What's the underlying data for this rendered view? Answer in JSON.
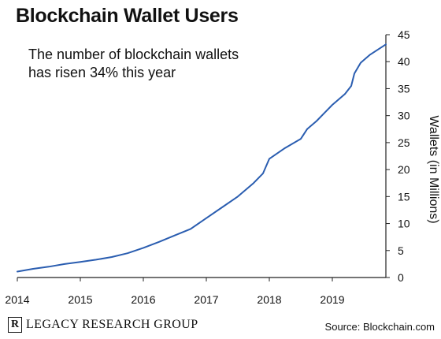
{
  "header": {
    "title": "Blockchain Wallet Users",
    "annotation_line1": "The number of blockchain wallets",
    "annotation_line2": "has risen 34% this year"
  },
  "footer": {
    "brand_mark": "R",
    "brand": "LEGACY RESEARCH GROUP",
    "source": "Source: Blockchain.com"
  },
  "colors": {
    "line": "#2a5db0",
    "axis": "#222222"
  },
  "chart_data": {
    "type": "line",
    "title": "Blockchain Wallet Users",
    "ylabel": "Wallets (in Millions)",
    "xlabel": "",
    "xlim": [
      2014.0,
      2019.85
    ],
    "ylim": [
      0,
      45
    ],
    "x_ticks": [
      "2014",
      "2015",
      "2016",
      "2017",
      "2018",
      "2019"
    ],
    "y_ticks": [
      0,
      5,
      10,
      15,
      20,
      25,
      30,
      35,
      40,
      45
    ],
    "y_axis_side": "right",
    "grid": false,
    "legend": "none",
    "series": [
      {
        "x": [
          2014.0,
          2014.25,
          2014.5,
          2014.75,
          2015.0,
          2015.25,
          2015.5,
          2015.75,
          2016.0,
          2016.25,
          2016.5,
          2016.75,
          2017.0,
          2017.25,
          2017.5,
          2017.75,
          2017.9,
          2018.0,
          2018.25,
          2018.5,
          2018.6,
          2018.75,
          2018.9,
          2019.0,
          2019.2,
          2019.3,
          2019.35,
          2019.45,
          2019.6,
          2019.85
        ],
        "y": [
          1.1,
          1.6,
          2.0,
          2.5,
          2.9,
          3.3,
          3.8,
          4.5,
          5.5,
          6.6,
          7.8,
          9.0,
          11.0,
          13.0,
          15.0,
          17.5,
          19.3,
          22.0,
          24.0,
          25.7,
          27.5,
          29.0,
          30.8,
          32.0,
          34.0,
          35.5,
          37.8,
          39.8,
          41.3,
          43.2
        ]
      }
    ]
  }
}
